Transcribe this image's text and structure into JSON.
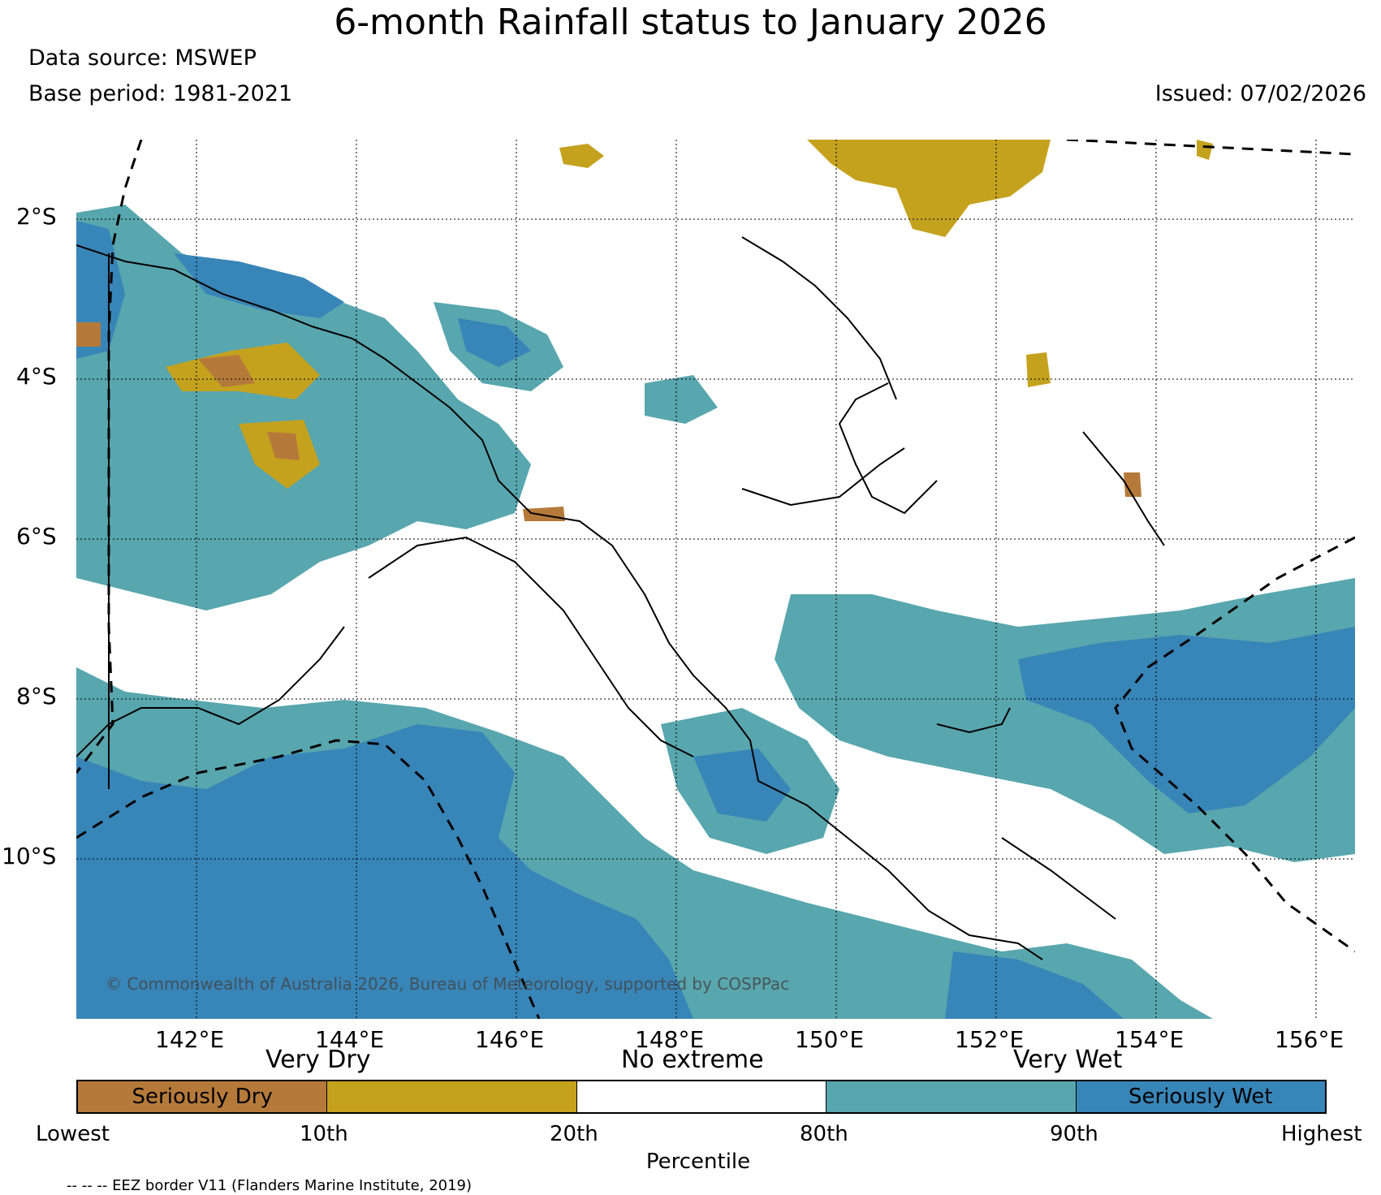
{
  "title": "6-month Rainfall status to January 2026",
  "data_source": "Data source: MSWEP",
  "base_period": "Base period: 1981-2021",
  "issued": "Issued: 07/02/2026",
  "latitude_labels": [
    "2°S",
    "4°S",
    "6°S",
    "8°S",
    "10°S"
  ],
  "longitude_labels": [
    "142°E",
    "144°E",
    "146°E",
    "148°E",
    "150°E",
    "152°E",
    "154°E",
    "156°E"
  ],
  "copyright": "© Commonwealth of Australia 2026, Bureau of Meteorology, supported by COSPPac",
  "legend": {
    "group_labels": [
      "Very Dry",
      "No extreme",
      "Very Wet"
    ],
    "boxes": [
      {
        "label": "Seriously Dry",
        "color": "#b57a3a"
      },
      {
        "label": "",
        "color": "#c4a21e"
      },
      {
        "label": "",
        "color": "#ffffff"
      },
      {
        "label": "",
        "color": "#58a6ae"
      },
      {
        "label": "Seriously Wet",
        "color": "#3885b8"
      }
    ],
    "ticks": [
      "Lowest",
      "10th",
      "20th",
      "80th",
      "90th",
      "Highest"
    ],
    "axis_label": "Percentile"
  },
  "footnote": "-- -- -- EEZ border V11 (Flanders Marine Institute, 2019)",
  "colors": {
    "seriously_dry": "#b57a3a",
    "very_dry": "#c4a21e",
    "very_wet": "#58a6ae",
    "seriously_wet": "#3885b8"
  }
}
